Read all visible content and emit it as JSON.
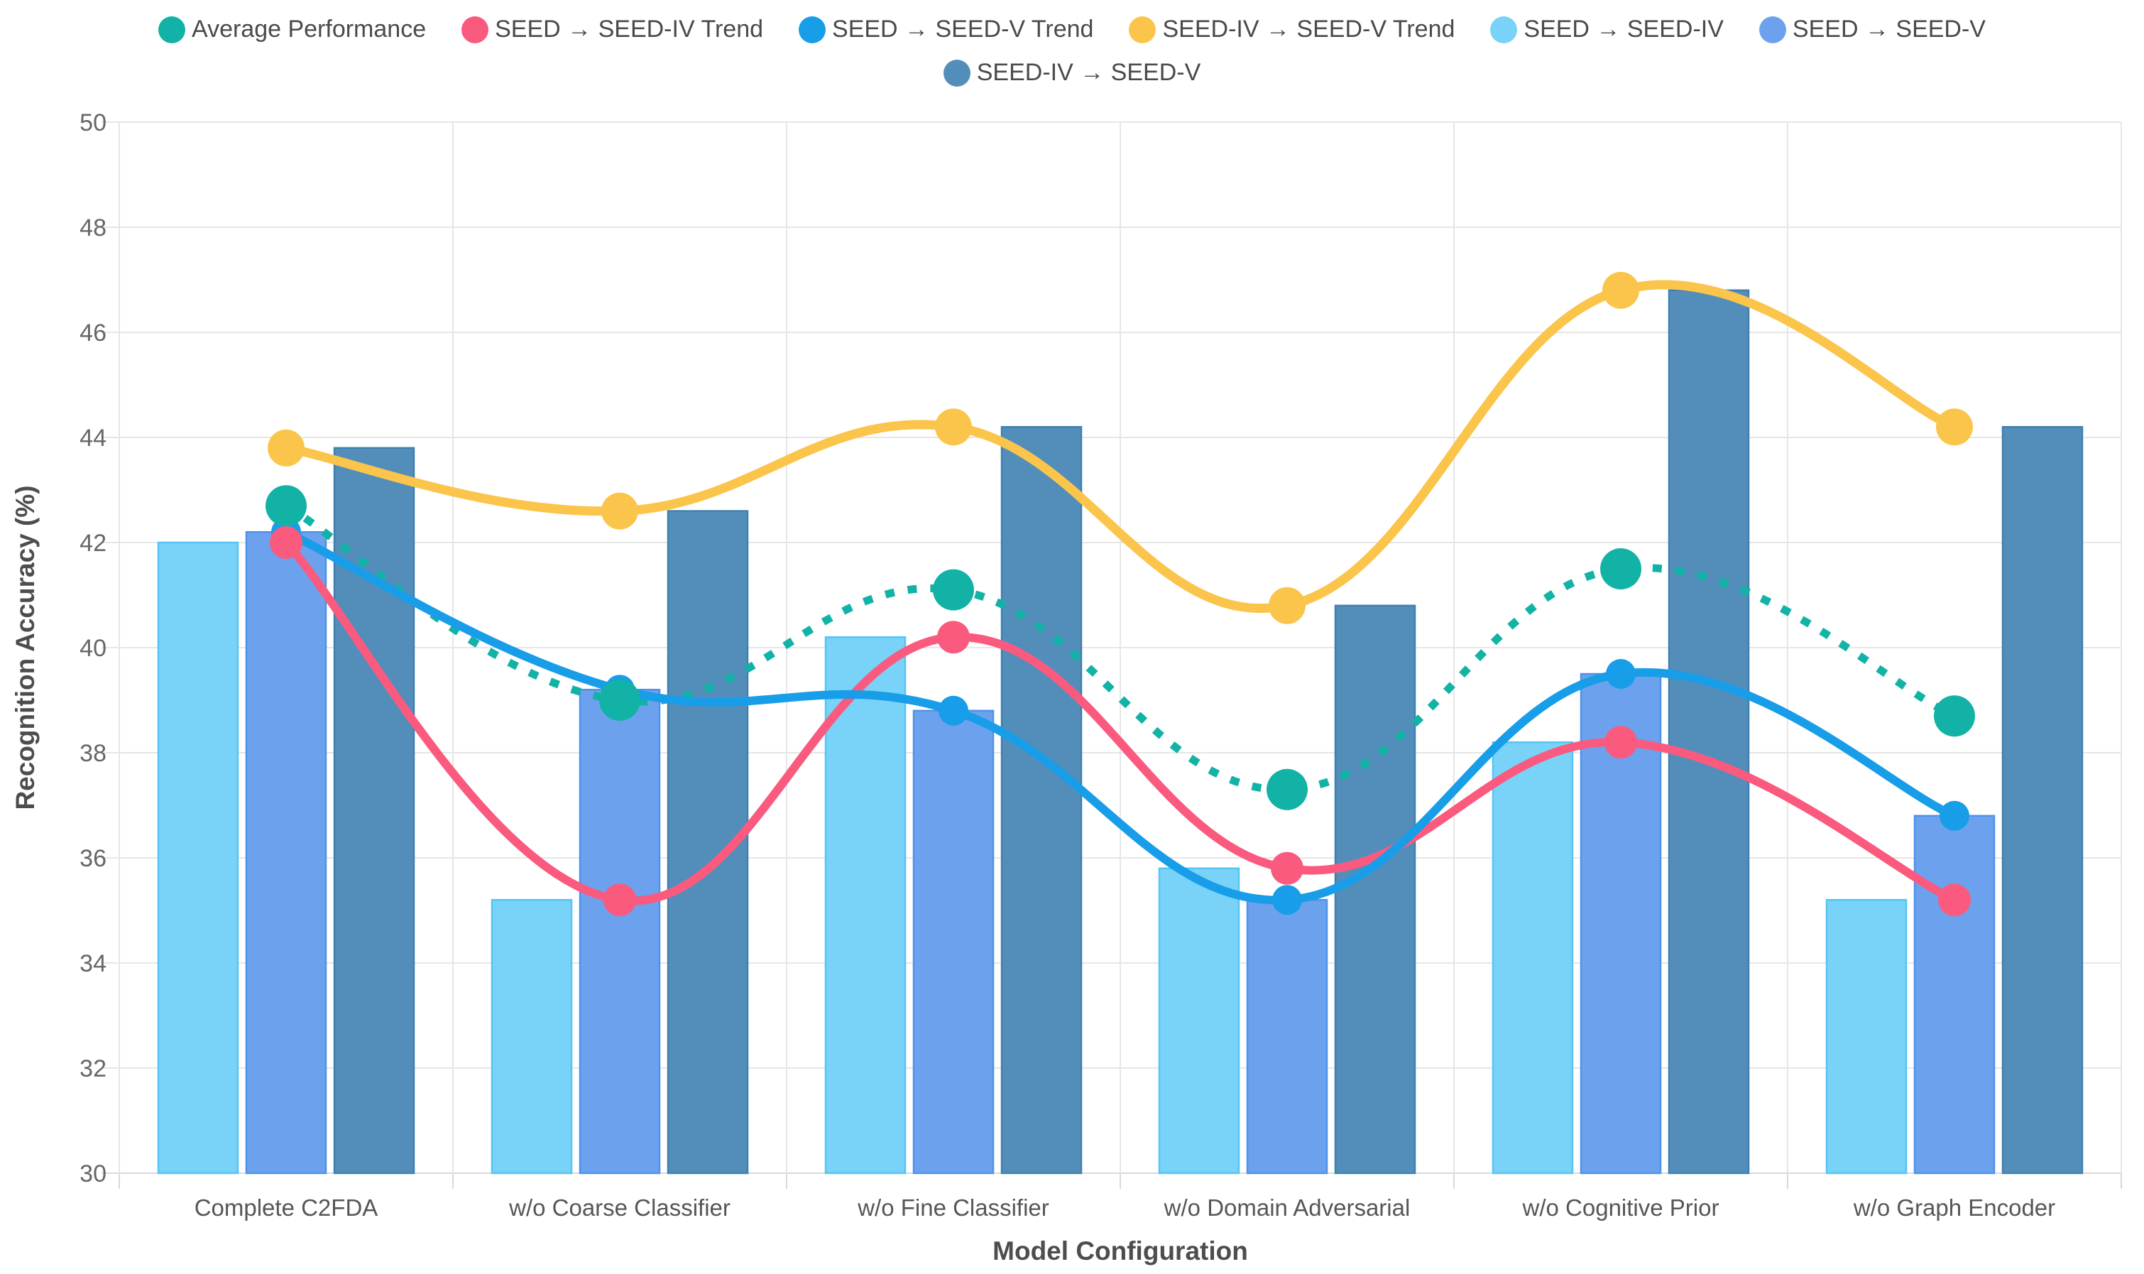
{
  "chart_data": {
    "type": "bar+line combo",
    "title": "",
    "xlabel": "Model Configuration",
    "ylabel": "Recognition Accuracy (%)",
    "ylim": [
      30,
      50
    ],
    "yticks": [
      30,
      32,
      34,
      36,
      38,
      40,
      42,
      44,
      46,
      48,
      50
    ],
    "grid": true,
    "legend_position": "top",
    "categories": [
      "Complete C2FDA",
      "w/o Coarse Classifier",
      "w/o Fine Classifier",
      "w/o Domain Adversarial",
      "w/o Cognitive Prior",
      "w/o Graph Encoder"
    ],
    "bar_series": [
      {
        "name": "SEED → SEED-IV",
        "color": "#79D2F7",
        "border": "#55C5F3",
        "values": [
          42.0,
          35.2,
          40.2,
          35.8,
          38.2,
          35.2
        ]
      },
      {
        "name": "SEED → SEED-V",
        "color": "#6CA2ED",
        "border": "#4E92E9",
        "values": [
          42.2,
          39.2,
          38.8,
          35.2,
          39.5,
          36.8
        ]
      },
      {
        "name": "SEED-IV → SEED-V",
        "color": "#538EBB",
        "border": "#3F80B0",
        "values": [
          43.8,
          42.6,
          44.2,
          40.8,
          46.8,
          44.2
        ]
      }
    ],
    "line_series": [
      {
        "name": "Average Performance",
        "color": "#12B3A6",
        "dashed": true,
        "width": 11,
        "point_radius": 29,
        "values": [
          42.7,
          39.0,
          41.1,
          37.3,
          41.5,
          38.7
        ]
      },
      {
        "name": "SEED → SEED-IV Trend",
        "color": "#FA5A7E",
        "dashed": false,
        "width": 12,
        "point_radius": 23,
        "values": [
          42.0,
          35.2,
          40.2,
          35.8,
          38.2,
          35.2
        ]
      },
      {
        "name": "SEED → SEED-V Trend",
        "color": "#189DE9",
        "dashed": false,
        "width": 12,
        "point_radius": 21,
        "values": [
          42.2,
          39.2,
          38.8,
          35.2,
          39.5,
          36.8
        ]
      },
      {
        "name": "SEED-IV → SEED-V Trend",
        "color": "#FBC54C",
        "dashed": false,
        "width": 13,
        "point_radius": 26,
        "values": [
          43.8,
          42.6,
          44.2,
          40.8,
          46.8,
          44.2
        ]
      }
    ],
    "legend": [
      {
        "label": "Average Performance",
        "color": "#12B3A6"
      },
      {
        "label": "SEED → SEED-IV Trend",
        "color": "#FA5A7E"
      },
      {
        "label": "SEED → SEED-V Trend",
        "color": "#189DE9"
      },
      {
        "label": "SEED-IV → SEED-V Trend",
        "color": "#FBC54C"
      },
      {
        "label": "SEED → SEED-IV",
        "color": "#79D2F7"
      },
      {
        "label": "SEED → SEED-V",
        "color": "#6CA2ED"
      },
      {
        "label": "SEED-IV → SEED-V",
        "color": "#538EBB"
      }
    ],
    "colors": {
      "grid": "#E6E6E6",
      "axis": "#D9D9D9",
      "tick_text": "#666666",
      "label_text": "#565656"
    }
  }
}
